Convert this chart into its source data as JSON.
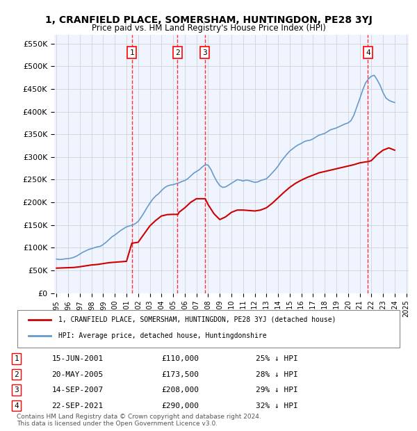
{
  "title": "1, CRANFIELD PLACE, SOMERSHAM, HUNTINGDON, PE28 3YJ",
  "subtitle": "Price paid vs. HM Land Registry's House Price Index (HPI)",
  "bg_color": "#f0f4ff",
  "plot_bg_color": "#f0f4ff",
  "grid_color": "#cccccc",
  "ylim": [
    0,
    570000
  ],
  "yticks": [
    0,
    50000,
    100000,
    150000,
    200000,
    250000,
    300000,
    350000,
    400000,
    450000,
    500000,
    550000
  ],
  "ytick_labels": [
    "£0",
    "£50K",
    "£100K",
    "£150K",
    "£200K",
    "£250K",
    "£300K",
    "£350K",
    "£400K",
    "£450K",
    "£500K",
    "£550K"
  ],
  "hpi_color": "#6699cc",
  "price_color": "#cc0000",
  "sale_dates": [
    "2001-06-15",
    "2005-05-20",
    "2007-09-14",
    "2021-09-22"
  ],
  "sale_prices": [
    110000,
    173500,
    208000,
    290000
  ],
  "sale_labels": [
    "1",
    "2",
    "3",
    "4"
  ],
  "sale_table": [
    [
      "1",
      "15-JUN-2001",
      "£110,000",
      "25% ↓ HPI"
    ],
    [
      "2",
      "20-MAY-2005",
      "£173,500",
      "28% ↓ HPI"
    ],
    [
      "3",
      "14-SEP-2007",
      "£208,000",
      "29% ↓ HPI"
    ],
    [
      "4",
      "22-SEP-2021",
      "£290,000",
      "32% ↓ HPI"
    ]
  ],
  "legend_line1": "1, CRANFIELD PLACE, SOMERSHAM, HUNTINGDON, PE28 3YJ (detached house)",
  "legend_line2": "HPI: Average price, detached house, Huntingdonshire",
  "footer1": "Contains HM Land Registry data © Crown copyright and database right 2024.",
  "footer2": "This data is licensed under the Open Government Licence v3.0.",
  "hpi_data_years": [
    1995.0,
    1995.25,
    1995.5,
    1995.75,
    1996.0,
    1996.25,
    1996.5,
    1996.75,
    1997.0,
    1997.25,
    1997.5,
    1997.75,
    1998.0,
    1998.25,
    1998.5,
    1998.75,
    1999.0,
    1999.25,
    1999.5,
    1999.75,
    2000.0,
    2000.25,
    2000.5,
    2000.75,
    2001.0,
    2001.25,
    2001.5,
    2001.75,
    2002.0,
    2002.25,
    2002.5,
    2002.75,
    2003.0,
    2003.25,
    2003.5,
    2003.75,
    2004.0,
    2004.25,
    2004.5,
    2004.75,
    2005.0,
    2005.25,
    2005.5,
    2005.75,
    2006.0,
    2006.25,
    2006.5,
    2006.75,
    2007.0,
    2007.25,
    2007.5,
    2007.75,
    2008.0,
    2008.25,
    2008.5,
    2008.75,
    2009.0,
    2009.25,
    2009.5,
    2009.75,
    2010.0,
    2010.25,
    2010.5,
    2010.75,
    2011.0,
    2011.25,
    2011.5,
    2011.75,
    2012.0,
    2012.25,
    2012.5,
    2012.75,
    2013.0,
    2013.25,
    2013.5,
    2013.75,
    2014.0,
    2014.25,
    2014.5,
    2014.75,
    2015.0,
    2015.25,
    2015.5,
    2015.75,
    2016.0,
    2016.25,
    2016.5,
    2016.75,
    2017.0,
    2017.25,
    2017.5,
    2017.75,
    2018.0,
    2018.25,
    2018.5,
    2018.75,
    2019.0,
    2019.25,
    2019.5,
    2019.75,
    2020.0,
    2020.25,
    2020.5,
    2020.75,
    2021.0,
    2021.25,
    2021.5,
    2021.75,
    2022.0,
    2022.25,
    2022.5,
    2022.75,
    2023.0,
    2023.25,
    2023.5,
    2023.75,
    2024.0
  ],
  "hpi_values": [
    75000,
    74000,
    74500,
    75500,
    76000,
    77000,
    79000,
    82000,
    86000,
    90000,
    93000,
    96000,
    98000,
    100000,
    102000,
    103000,
    107000,
    112000,
    118000,
    124000,
    128000,
    133000,
    138000,
    142000,
    146000,
    148000,
    150000,
    153000,
    158000,
    167000,
    177000,
    188000,
    198000,
    207000,
    214000,
    219000,
    226000,
    232000,
    236000,
    238000,
    239000,
    241000,
    243000,
    246000,
    248000,
    252000,
    258000,
    264000,
    268000,
    272000,
    278000,
    283000,
    282000,
    272000,
    258000,
    246000,
    237000,
    233000,
    234000,
    238000,
    242000,
    246000,
    250000,
    249000,
    247000,
    249000,
    248000,
    246000,
    244000,
    245000,
    248000,
    250000,
    252000,
    258000,
    265000,
    272000,
    280000,
    290000,
    298000,
    306000,
    313000,
    318000,
    323000,
    327000,
    330000,
    334000,
    336000,
    337000,
    340000,
    344000,
    348000,
    350000,
    352000,
    356000,
    360000,
    362000,
    364000,
    367000,
    370000,
    373000,
    375000,
    380000,
    392000,
    410000,
    428000,
    447000,
    463000,
    472000,
    478000,
    480000,
    470000,
    458000,
    442000,
    430000,
    425000,
    422000,
    420000
  ],
  "price_line_years": [
    1995.0,
    1995.5,
    1996.0,
    1996.5,
    1997.0,
    1997.5,
    1998.0,
    1998.5,
    1999.0,
    1999.5,
    2000.0,
    2000.5,
    2001.0,
    2001.458,
    2001.5,
    2002.0,
    2002.5,
    2003.0,
    2003.5,
    2004.0,
    2004.5,
    2005.0,
    2005.417,
    2005.5,
    2006.0,
    2006.5,
    2007.0,
    2007.708,
    2007.75,
    2008.0,
    2008.5,
    2009.0,
    2009.5,
    2010.0,
    2010.5,
    2011.0,
    2011.5,
    2012.0,
    2012.5,
    2013.0,
    2013.5,
    2014.0,
    2014.5,
    2015.0,
    2015.5,
    2016.0,
    2016.5,
    2017.0,
    2017.5,
    2018.0,
    2018.5,
    2019.0,
    2019.5,
    2020.0,
    2020.5,
    2021.0,
    2021.722,
    2021.75,
    2022.0,
    2022.5,
    2023.0,
    2023.5,
    2024.0
  ],
  "price_line_values": [
    55000,
    55500,
    56000,
    56500,
    58000,
    60000,
    62000,
    63000,
    65000,
    67000,
    68000,
    69000,
    70000,
    110000,
    110000,
    112000,
    130000,
    148000,
    160000,
    170000,
    173000,
    173500,
    173500,
    178000,
    188000,
    200000,
    208000,
    208000,
    208000,
    195000,
    175000,
    162000,
    168000,
    178000,
    183000,
    183000,
    182000,
    181000,
    183000,
    188000,
    198000,
    210000,
    222000,
    233000,
    242000,
    249000,
    255000,
    260000,
    265000,
    268000,
    271000,
    274000,
    277000,
    280000,
    283000,
    287000,
    290000,
    290000,
    292000,
    305000,
    315000,
    320000,
    315000
  ]
}
